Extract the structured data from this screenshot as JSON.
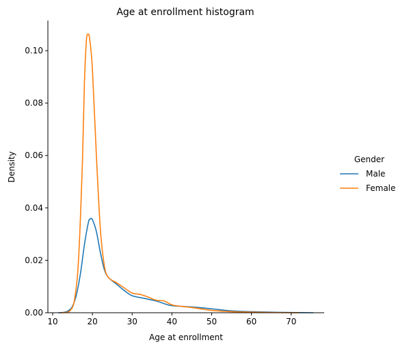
{
  "chart_data": {
    "type": "line",
    "title": "Age at enrollment histogram",
    "xlabel": "Age at enrollment",
    "ylabel": "Density",
    "xlim": [
      8.8,
      78.3
    ],
    "ylim": [
      0,
      0.1115
    ],
    "xticks": [
      10,
      20,
      30,
      40,
      50,
      60,
      70
    ],
    "yticks": [
      0.0,
      0.02,
      0.04,
      0.06,
      0.08,
      0.1
    ],
    "ytick_labels": [
      "0.00",
      "0.02",
      "0.04",
      "0.06",
      "0.08",
      "0.10"
    ],
    "grid": false,
    "legend": {
      "title": "Gender",
      "placement": "right-outside"
    },
    "series": [
      {
        "name": "Male",
        "color": "#1f77b4",
        "points": [
          [
            11.5,
            0.0
          ],
          [
            13,
            0.0002
          ],
          [
            14,
            0.0008
          ],
          [
            15,
            0.0025
          ],
          [
            16,
            0.007
          ],
          [
            17,
            0.015
          ],
          [
            18,
            0.026
          ],
          [
            19,
            0.0345
          ],
          [
            19.5,
            0.0358
          ],
          [
            20,
            0.0355
          ],
          [
            21,
            0.031
          ],
          [
            22,
            0.023
          ],
          [
            23,
            0.0165
          ],
          [
            24,
            0.0135
          ],
          [
            26,
            0.011
          ],
          [
            28,
            0.0085
          ],
          [
            30,
            0.0065
          ],
          [
            33,
            0.0055
          ],
          [
            36,
            0.0045
          ],
          [
            38,
            0.0035
          ],
          [
            40,
            0.0027
          ],
          [
            45,
            0.0022
          ],
          [
            50,
            0.0015
          ],
          [
            55,
            0.0007
          ],
          [
            60,
            0.0004
          ],
          [
            65,
            0.0002
          ],
          [
            70,
            0.0001
          ],
          [
            75.5,
            0.0
          ]
        ]
      },
      {
        "name": "Female",
        "color": "#ff7f0e",
        "points": [
          [
            12,
            0.0
          ],
          [
            13.5,
            0.0002
          ],
          [
            14.5,
            0.001
          ],
          [
            15.5,
            0.005
          ],
          [
            16.5,
            0.02
          ],
          [
            17.5,
            0.058
          ],
          [
            18,
            0.088
          ],
          [
            18.5,
            0.104
          ],
          [
            18.9,
            0.1062
          ],
          [
            19.3,
            0.1045
          ],
          [
            20,
            0.093
          ],
          [
            21,
            0.06
          ],
          [
            22,
            0.032
          ],
          [
            23,
            0.018
          ],
          [
            24,
            0.0135
          ],
          [
            26,
            0.0115
          ],
          [
            28,
            0.0095
          ],
          [
            30,
            0.0075
          ],
          [
            32,
            0.007
          ],
          [
            34,
            0.006
          ],
          [
            36,
            0.0048
          ],
          [
            38,
            0.0045
          ],
          [
            40,
            0.003
          ],
          [
            42,
            0.0025
          ],
          [
            45,
            0.002
          ],
          [
            48,
            0.0013
          ],
          [
            50,
            0.0009
          ],
          [
            55,
            0.0004
          ],
          [
            60,
            0.0002
          ],
          [
            65,
            0.0001
          ],
          [
            70,
            0.0
          ],
          [
            72,
            0.0
          ]
        ]
      }
    ]
  }
}
